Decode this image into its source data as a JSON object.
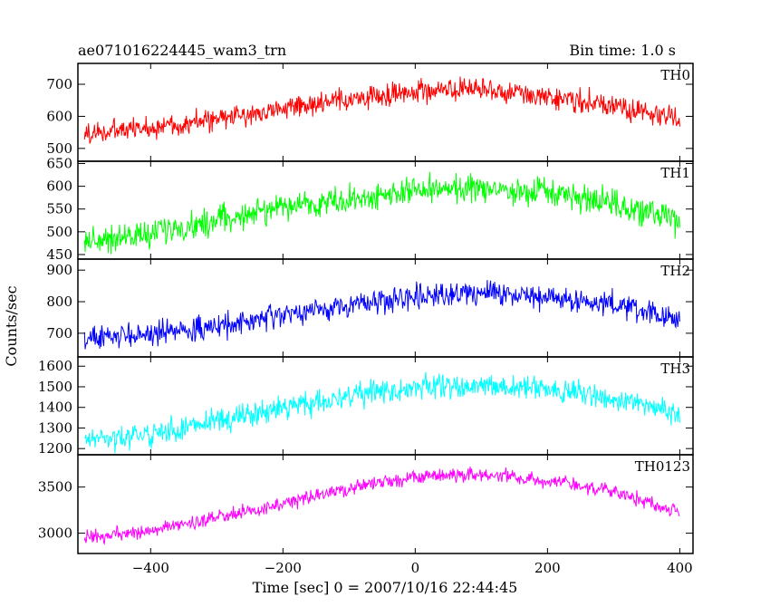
{
  "header": {
    "title": "ae071016224445_wam3_trn",
    "bin_time": "Bin time: 1.0 s"
  },
  "chart_data": {
    "type": "line",
    "title": "ae071016224445_wam3_trn",
    "xlabel": "Time [sec] 0 = 2007/10/16 22:44:45",
    "ylabel": "Counts/sec",
    "xlim": [
      -510,
      420
    ],
    "x_ticks": [
      -400,
      -200,
      0,
      200,
      400
    ],
    "x_tick_labels": [
      "−400",
      "−200",
      "0",
      "200",
      "400"
    ],
    "x_range_of_data": [
      -500,
      400
    ],
    "bin_time_s": 1.0,
    "panels": [
      {
        "name": "TH0",
        "color": "#ff0000",
        "ylim": [
          460,
          765
        ],
        "y_ticks": [
          500,
          600,
          700
        ],
        "profile": [
          {
            "x": -500,
            "y": 545
          },
          {
            "x": -400,
            "y": 565
          },
          {
            "x": -300,
            "y": 590
          },
          {
            "x": -200,
            "y": 625
          },
          {
            "x": -100,
            "y": 650
          },
          {
            "x": 0,
            "y": 680
          },
          {
            "x": 100,
            "y": 680
          },
          {
            "x": 200,
            "y": 665
          },
          {
            "x": 300,
            "y": 630
          },
          {
            "x": 400,
            "y": 590
          }
        ],
        "noise_amplitude": 28
      },
      {
        "name": "TH1",
        "color": "#00ff00",
        "ylim": [
          440,
          655
        ],
        "y_ticks": [
          450,
          500,
          550,
          600,
          650
        ],
        "profile": [
          {
            "x": -500,
            "y": 480
          },
          {
            "x": -400,
            "y": 495
          },
          {
            "x": -300,
            "y": 525
          },
          {
            "x": -200,
            "y": 555
          },
          {
            "x": -100,
            "y": 570
          },
          {
            "x": 0,
            "y": 590
          },
          {
            "x": 100,
            "y": 595
          },
          {
            "x": 200,
            "y": 585
          },
          {
            "x": 300,
            "y": 560
          },
          {
            "x": 400,
            "y": 520
          }
        ],
        "noise_amplitude": 24
      },
      {
        "name": "TH2",
        "color": "#0000ff",
        "ylim": [
          625,
          935
        ],
        "y_ticks": [
          700,
          800,
          900
        ],
        "profile": [
          {
            "x": -500,
            "y": 680
          },
          {
            "x": -400,
            "y": 700
          },
          {
            "x": -300,
            "y": 720
          },
          {
            "x": -200,
            "y": 755
          },
          {
            "x": -100,
            "y": 790
          },
          {
            "x": 0,
            "y": 820
          },
          {
            "x": 100,
            "y": 830
          },
          {
            "x": 200,
            "y": 815
          },
          {
            "x": 300,
            "y": 790
          },
          {
            "x": 400,
            "y": 740
          }
        ],
        "noise_amplitude": 30
      },
      {
        "name": "TH3",
        "color": "#00ffff",
        "ylim": [
          1170,
          1645
        ],
        "y_ticks": [
          1200,
          1300,
          1400,
          1500,
          1600
        ],
        "profile": [
          {
            "x": -500,
            "y": 1240
          },
          {
            "x": -400,
            "y": 1270
          },
          {
            "x": -300,
            "y": 1330
          },
          {
            "x": -200,
            "y": 1400
          },
          {
            "x": -100,
            "y": 1450
          },
          {
            "x": 0,
            "y": 1500
          },
          {
            "x": 100,
            "y": 1510
          },
          {
            "x": 200,
            "y": 1490
          },
          {
            "x": 300,
            "y": 1440
          },
          {
            "x": 400,
            "y": 1370
          }
        ],
        "noise_amplitude": 45
      },
      {
        "name": "TH0123",
        "color": "#ff00ff",
        "ylim": [
          2780,
          3850
        ],
        "y_ticks": [
          3000,
          3500
        ],
        "profile": [
          {
            "x": -500,
            "y": 2940
          },
          {
            "x": -400,
            "y": 3030
          },
          {
            "x": -300,
            "y": 3160
          },
          {
            "x": -200,
            "y": 3320
          },
          {
            "x": -100,
            "y": 3480
          },
          {
            "x": 0,
            "y": 3610
          },
          {
            "x": 100,
            "y": 3640
          },
          {
            "x": 200,
            "y": 3570
          },
          {
            "x": 300,
            "y": 3450
          },
          {
            "x": 400,
            "y": 3230
          }
        ],
        "noise_amplitude": 60
      }
    ]
  }
}
